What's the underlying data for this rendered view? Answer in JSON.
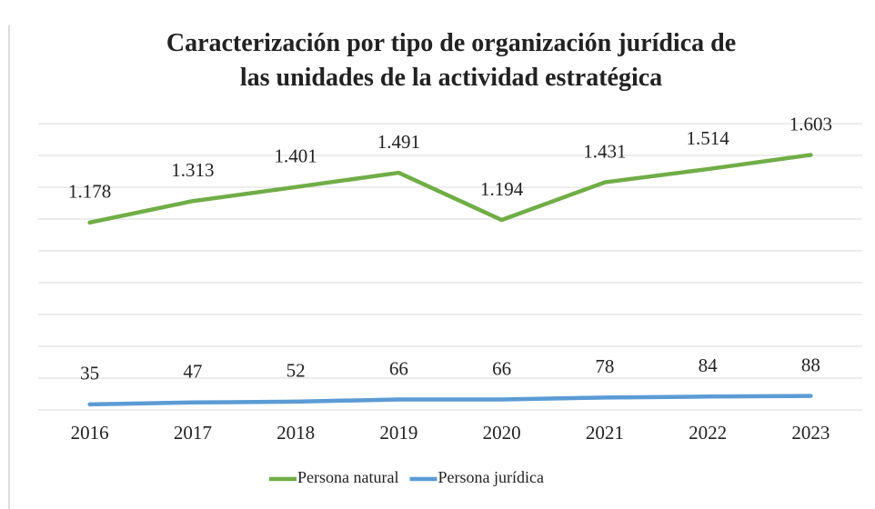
{
  "chart_data": {
    "type": "line",
    "title": "Caracterización por tipo de organización jurídica de las unidades de la actividad estratégica",
    "categories": [
      "2016",
      "2017",
      "2018",
      "2019",
      "2020",
      "2021",
      "2022",
      "2023"
    ],
    "series": [
      {
        "name": "Persona natural",
        "color": "#70ad47",
        "values": [
          1178,
          1313,
          1401,
          1491,
          1194,
          1431,
          1514,
          1603
        ],
        "value_labels": [
          "1.178",
          "1.313",
          "1.401",
          "1.491",
          "1.194",
          "1.431",
          "1.514",
          "1.603"
        ]
      },
      {
        "name": "Persona jurídica",
        "color": "#5b9bd5",
        "values": [
          35,
          47,
          52,
          66,
          66,
          78,
          84,
          88
        ]
      }
    ],
    "ylim": [
      0,
      1800
    ],
    "yticks": [
      0,
      200,
      400,
      600,
      800,
      1000,
      1200,
      1400,
      1600,
      1800
    ],
    "grid": true,
    "legend": "bottom"
  }
}
